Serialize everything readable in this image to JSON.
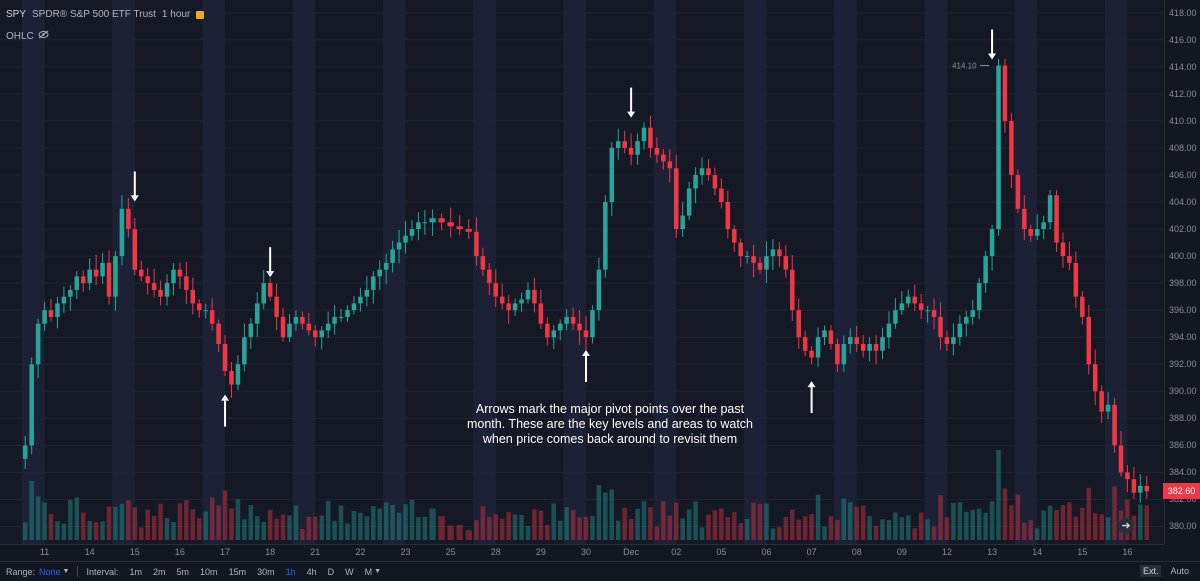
{
  "legend": {
    "symbol": "SPY",
    "name": "SPDR® S&P 500 ETF Trust",
    "interval": "1 hour",
    "ohlc_label": "OHLC"
  },
  "price_axis": {
    "ticks": [
      "418.00",
      "416.00",
      "414.00",
      "412.00",
      "410.00",
      "408.00",
      "406.00",
      "404.00",
      "402.00",
      "400.00",
      "398.00",
      "396.00",
      "394.00",
      "392.00",
      "390.00",
      "388.00",
      "386.00",
      "384.00",
      "382.00",
      "380.00"
    ],
    "last_price": "382.60"
  },
  "time_axis": {
    "labels": [
      "11",
      "14",
      "15",
      "16",
      "17",
      "18",
      "21",
      "22",
      "23",
      "25",
      "28",
      "29",
      "30",
      "Dec",
      "02",
      "05",
      "06",
      "07",
      "08",
      "09",
      "12",
      "13",
      "14",
      "15",
      "16"
    ]
  },
  "annotation": {
    "line1": "Arrows mark the major pivot points over the past",
    "line2": "month. These are the key levels and areas to watch",
    "line3": "when price comes back around to revisit them"
  },
  "high_label": "414.10",
  "toolbar": {
    "range_label": "Range:",
    "range_value": "None",
    "interval_label": "Interval:",
    "intervals": [
      "1m",
      "2m",
      "5m",
      "10m",
      "15m",
      "30m",
      "1h",
      "4h",
      "D",
      "W",
      "M"
    ],
    "active_interval": "1h",
    "ext_label": "Ext.",
    "auto_label": "Auto"
  },
  "chart_data": {
    "type": "candlestick",
    "symbol": "SPY",
    "ylim": [
      379,
      418.5
    ],
    "x": [
      "11",
      "14",
      "15",
      "16",
      "17",
      "18",
      "21",
      "22",
      "23",
      "25",
      "28",
      "29",
      "30",
      "Dec",
      "02",
      "05",
      "06",
      "07",
      "08",
      "09",
      "12",
      "13",
      "14",
      "15",
      "16"
    ],
    "closes_by_session": [
      [
        386,
        392,
        395,
        396,
        395.5,
        396.5,
        397
      ],
      [
        397.5,
        398.5,
        398,
        399,
        398.5,
        399.5,
        397
      ],
      [
        400,
        403.5,
        402,
        399,
        398.5,
        398,
        397.5
      ],
      [
        397,
        398,
        399,
        398.5,
        397.5,
        396.5,
        396
      ],
      [
        396,
        395,
        393.5,
        391.5,
        390.5,
        392,
        394
      ],
      [
        395,
        396.5,
        398,
        397,
        395.5,
        394,
        395
      ],
      [
        395.5,
        395,
        394.5,
        394,
        394.5,
        395,
        395.5
      ],
      [
        395.5,
        396,
        396.5,
        397,
        397.5,
        398.5,
        399
      ],
      [
        399.5,
        400.5,
        401,
        401.5,
        402,
        402.5,
        402.5
      ],
      [
        402.8,
        402.5,
        402.2,
        402,
        401.8
      ],
      [
        400,
        399,
        398,
        397,
        396.5,
        396,
        396.5
      ],
      [
        396.8,
        397.5,
        396.5,
        395,
        394,
        394.5,
        395
      ],
      [
        395.5,
        395,
        394.5,
        394,
        396,
        399,
        404
      ],
      [
        408,
        408.5,
        408,
        407.5,
        408.5,
        409.5,
        408
      ],
      [
        407.5,
        407,
        406.5,
        402,
        403,
        405,
        406
      ],
      [
        406.5,
        406,
        405,
        404,
        402,
        401,
        400
      ],
      [
        400,
        399.5,
        399,
        400,
        400.5,
        400,
        399
      ],
      [
        396,
        394,
        393,
        392.5,
        394,
        394.5,
        393.5
      ],
      [
        392,
        393.5,
        394,
        393.5,
        393,
        393.5,
        393
      ],
      [
        394,
        395,
        396,
        396.5,
        397,
        396.5,
        396
      ],
      [
        396,
        395.5,
        394,
        393.5,
        394,
        395,
        395.5
      ],
      [
        396,
        398,
        400,
        402,
        414.1,
        410,
        406
      ],
      [
        403.5,
        402,
        401.5,
        402,
        402.5,
        404.5,
        401
      ],
      [
        400,
        399.5,
        397,
        395.5,
        392,
        390,
        388.5
      ],
      [
        389,
        386,
        384,
        383.5,
        382.5,
        383,
        382.6
      ]
    ],
    "arrows": [
      {
        "x": "15",
        "y": 403.6,
        "direction": "down"
      },
      {
        "x": "17",
        "y": 390.2,
        "direction": "up"
      },
      {
        "x": "18",
        "y": 398,
        "direction": "down"
      },
      {
        "x": "30",
        "y": 393.5,
        "direction": "up"
      },
      {
        "x": "Dec",
        "y": 409.8,
        "direction": "down"
      },
      {
        "x": "07",
        "y": 391.2,
        "direction": "up"
      },
      {
        "x": "13",
        "y": 414.1,
        "direction": "down"
      }
    ],
    "colors": {
      "up": "#26a69a",
      "down": "#f23645",
      "session_band": "#1c2136",
      "arrow": "#ffffff"
    }
  }
}
